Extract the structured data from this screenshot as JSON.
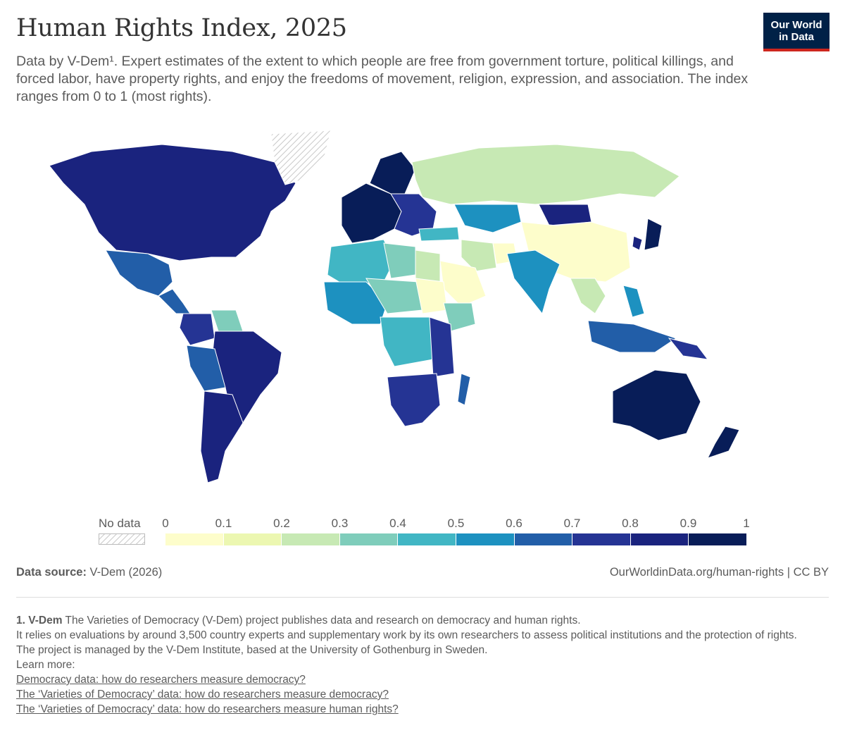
{
  "header": {
    "title": "Human Rights Index, 2025",
    "subtitle": "Data by V-Dem¹. Expert estimates of the extent to which people are free from government torture, political killings, and forced labor, have property rights, and enjoy the freedoms of movement, religion, expression, and association. The index ranges from 0 to 1 (most rights).",
    "logo_line1": "Our World",
    "logo_line2": "in Data",
    "logo_color": "#002147",
    "logo_accent": "#ce261e"
  },
  "legend": {
    "nodata_label": "No data",
    "ticks": [
      "0",
      "0.1",
      "0.2",
      "0.3",
      "0.4",
      "0.5",
      "0.6",
      "0.7",
      "0.8",
      "0.9",
      "1"
    ],
    "colors": [
      "#fdfdcb",
      "#ecf7b1",
      "#c7e9b4",
      "#7fcdbb",
      "#41b6c4",
      "#1d91c0",
      "#225ea8",
      "#253494",
      "#1a237e",
      "#081d58"
    ]
  },
  "chart_data": {
    "type": "choropleth",
    "title": "Human Rights Index, 2025",
    "scale": {
      "min": 0,
      "max": 1,
      "bins": [
        0,
        0.1,
        0.2,
        0.3,
        0.4,
        0.5,
        0.6,
        0.7,
        0.8,
        0.9,
        1
      ]
    },
    "regions": [
      {
        "name": "North America",
        "value": 0.85
      },
      {
        "name": "Greenland",
        "value": null
      },
      {
        "name": "Mexico",
        "value": 0.65
      },
      {
        "name": "Central America",
        "value": 0.7
      },
      {
        "name": "Venezuela",
        "value": 0.35
      },
      {
        "name": "Colombia",
        "value": 0.75
      },
      {
        "name": "Brazil",
        "value": 0.85
      },
      {
        "name": "Bolivia",
        "value": 0.7
      },
      {
        "name": "Southern Cone",
        "value": 0.85
      },
      {
        "name": "Western Europe",
        "value": 0.95
      },
      {
        "name": "Scandinavia",
        "value": 0.95
      },
      {
        "name": "Eastern Europe",
        "value": 0.75
      },
      {
        "name": "Russia",
        "value": 0.25
      },
      {
        "name": "Kazakhstan",
        "value": 0.55
      },
      {
        "name": "Mongolia",
        "value": 0.85
      },
      {
        "name": "China",
        "value": 0.05
      },
      {
        "name": "Japan",
        "value": 0.95
      },
      {
        "name": "South Korea",
        "value": 0.9
      },
      {
        "name": "Turkey",
        "value": 0.45
      },
      {
        "name": "Iran",
        "value": 0.25
      },
      {
        "name": "Saudi Arabia",
        "value": 0.1
      },
      {
        "name": "Afghanistan",
        "value": 0.05
      },
      {
        "name": "India",
        "value": 0.55
      },
      {
        "name": "Southeast Asia",
        "value": 0.3
      },
      {
        "name": "Indonesia",
        "value": 0.7
      },
      {
        "name": "Philippines",
        "value": 0.6
      },
      {
        "name": "Papua New Guinea",
        "value": 0.75
      },
      {
        "name": "Australia",
        "value": 0.95
      },
      {
        "name": "New Zealand",
        "value": 0.95
      },
      {
        "name": "North Africa",
        "value": 0.45
      },
      {
        "name": "Libya",
        "value": 0.35
      },
      {
        "name": "Egypt",
        "value": 0.25
      },
      {
        "name": "West Africa",
        "value": 0.55
      },
      {
        "name": "Sahel",
        "value": 0.35
      },
      {
        "name": "Sudan",
        "value": 0.1
      },
      {
        "name": "Ethiopia",
        "value": 0.35
      },
      {
        "name": "Central Africa",
        "value": 0.45
      },
      {
        "name": "East Africa",
        "value": 0.75
      },
      {
        "name": "Southern Africa",
        "value": 0.8
      },
      {
        "name": "Madagascar",
        "value": 0.65
      }
    ]
  },
  "footer": {
    "source_label": "Data source:",
    "source_value": "V-Dem (2026)",
    "url": "OurWorldinData.org/human-rights | CC BY"
  },
  "footnote": {
    "number": "1.",
    "term": "V-Dem",
    "line1": "The Varieties of Democracy (V-Dem) project publishes data and research on democracy and human rights.",
    "line2": "It relies on evaluations by around 3,500 country experts and supplementary work by its own researchers to assess political institutions and the protection of rights.",
    "line3": "The project is managed by the V-Dem Institute, based at the University of Gothenburg in Sweden.",
    "line4": "Learn more:",
    "links": [
      "Democracy data: how do researchers measure democracy?",
      "The ‘Varieties of Democracy’ data: how do researchers measure democracy?",
      "The ‘Varieties of Democracy’ data: how do researchers measure human rights?"
    ]
  }
}
